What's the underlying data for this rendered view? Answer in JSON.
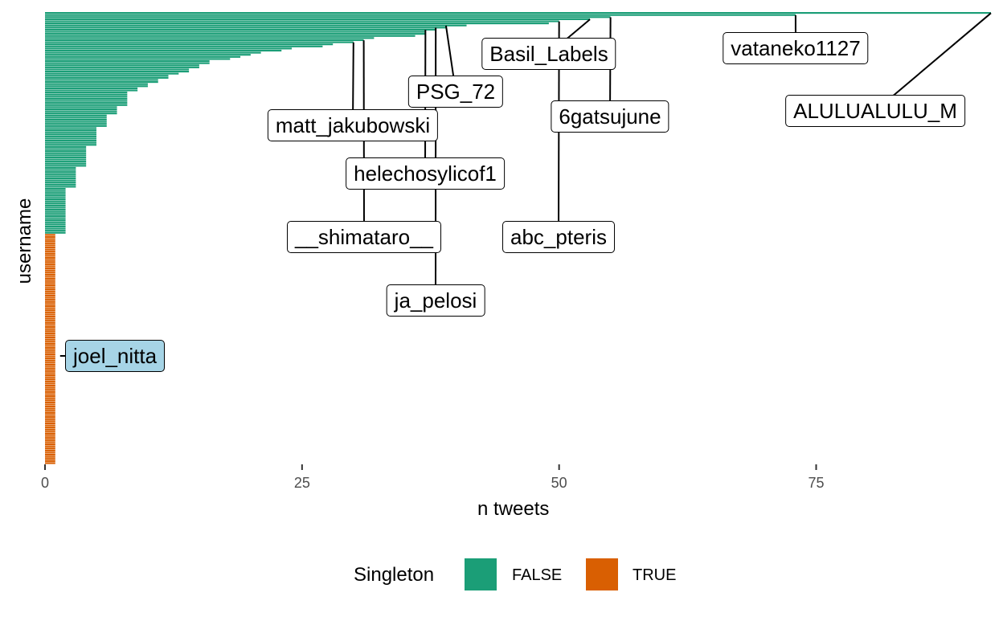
{
  "chart_data": {
    "type": "bar",
    "orientation": "horizontal",
    "xlabel": "n tweets",
    "ylabel": "username",
    "xlim": [
      0,
      92
    ],
    "x_ticks": [
      0,
      25,
      50,
      75
    ],
    "grid": false,
    "legend": {
      "title": "Singleton",
      "position": "bottom",
      "entries": [
        {
          "label": "FALSE",
          "color": "#1b9e77"
        },
        {
          "label": "TRUE",
          "color": "#d95f02"
        }
      ]
    },
    "bar_groups": [
      {
        "singleton": "FALSE",
        "values": [
          92,
          73,
          55,
          53,
          50,
          49,
          41,
          39,
          38,
          37,
          37,
          36,
          32,
          31,
          30,
          28,
          27,
          24,
          23,
          21,
          20,
          19,
          18,
          16,
          16,
          15,
          15,
          14,
          14,
          13,
          12,
          12,
          11,
          11,
          10,
          10,
          9,
          9,
          8,
          8,
          8,
          8,
          8,
          8,
          8,
          7,
          7,
          7,
          7,
          6,
          6,
          6,
          6,
          6,
          6,
          5,
          5,
          5,
          5,
          5,
          5,
          5,
          5,
          5,
          4,
          4,
          4,
          4,
          4,
          4,
          4,
          4,
          4,
          4,
          3,
          3,
          3,
          3,
          3,
          3,
          3,
          3,
          3,
          3,
          2,
          2,
          2,
          2,
          2,
          2,
          2,
          2,
          2,
          2,
          2,
          2,
          2,
          2,
          2,
          2,
          2,
          2,
          2,
          2,
          2,
          2
        ]
      },
      {
        "singleton": "TRUE",
        "count": 110,
        "value": 1
      }
    ],
    "labeled_users": [
      {
        "name": "ALULUALULU_M",
        "value": 92,
        "rank": 1,
        "highlight": false
      },
      {
        "name": "vataneko1127",
        "value": 73,
        "rank": 2,
        "highlight": false
      },
      {
        "name": "6gatsujune",
        "value": 55,
        "rank": 3,
        "highlight": false
      },
      {
        "name": "Basil_Labels",
        "value": 53,
        "rank": 4,
        "highlight": false
      },
      {
        "name": "abc_pteris",
        "value": 50,
        "rank": 5,
        "highlight": false
      },
      {
        "name": "PSG_72",
        "value": 39,
        "rank": 7,
        "highlight": false
      },
      {
        "name": "ja_pelosi",
        "value": 38,
        "rank": 8,
        "highlight": false
      },
      {
        "name": "helechosylicof1",
        "value": 37,
        "rank": 9,
        "highlight": false
      },
      {
        "name": "__shimataro__",
        "value": 31,
        "rank": 14,
        "highlight": false
      },
      {
        "name": "matt_jakubowski",
        "value": 30,
        "rank": 15,
        "highlight": false
      },
      {
        "name": "joel_nitta",
        "value": 1,
        "rank": 170,
        "highlight": true
      }
    ]
  }
}
